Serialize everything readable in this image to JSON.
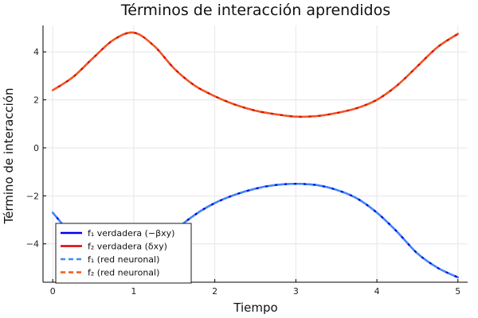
{
  "chart_data": {
    "type": "line",
    "title": "Términos de interacción aprendidos",
    "xlabel": "Tiempo",
    "ylabel": "Término de interacción",
    "xlim": [
      -0.12,
      5.12
    ],
    "ylim": [
      -5.6,
      5.1
    ],
    "xticks": [
      0,
      1,
      2,
      3,
      4,
      5
    ],
    "xtick_labels": [
      "0",
      "1",
      "2",
      "3",
      "4",
      "5"
    ],
    "yticks": [
      -4,
      -2,
      0,
      2,
      4
    ],
    "ytick_labels": [
      "−4",
      "−2",
      "0",
      "2",
      "4"
    ],
    "grid": true,
    "legend_position": "bottom-left",
    "x": [
      0,
      0.25,
      0.5,
      0.75,
      1.0,
      1.25,
      1.5,
      1.75,
      2.0,
      2.25,
      2.5,
      2.75,
      3.0,
      3.25,
      3.5,
      3.75,
      4.0,
      4.25,
      4.5,
      4.75,
      5.0
    ],
    "series": [
      {
        "name": "f₁ verdadera (−βxy)",
        "color": "#0000ee",
        "style": "solid",
        "values": [
          -2.7,
          -3.7,
          -4.6,
          -5.25,
          -5.45,
          -4.6,
          -3.5,
          -2.8,
          -2.3,
          -1.95,
          -1.7,
          -1.55,
          -1.5,
          -1.55,
          -1.75,
          -2.1,
          -2.7,
          -3.5,
          -4.4,
          -5.0,
          -5.4
        ]
      },
      {
        "name": "f₂ verdadera (δxy)",
        "color": "#dd0000",
        "style": "solid",
        "values": [
          2.4,
          2.95,
          3.75,
          4.5,
          4.8,
          4.25,
          3.3,
          2.6,
          2.15,
          1.8,
          1.55,
          1.4,
          1.3,
          1.32,
          1.45,
          1.65,
          2.0,
          2.6,
          3.4,
          4.2,
          4.75
        ]
      },
      {
        "name": "f₁ (red neuronal)",
        "color": "#3a8ef6",
        "style": "dashed",
        "values": [
          -2.7,
          -3.7,
          -4.6,
          -5.25,
          -5.45,
          -4.6,
          -3.5,
          -2.8,
          -2.3,
          -1.95,
          -1.7,
          -1.55,
          -1.5,
          -1.55,
          -1.75,
          -2.1,
          -2.7,
          -3.5,
          -4.4,
          -5.0,
          -5.4
        ]
      },
      {
        "name": "f₂ (red neuronal)",
        "color": "#f05a1a",
        "style": "dashed",
        "values": [
          2.4,
          2.95,
          3.75,
          4.5,
          4.8,
          4.25,
          3.3,
          2.6,
          2.15,
          1.8,
          1.55,
          1.4,
          1.3,
          1.32,
          1.45,
          1.65,
          2.0,
          2.6,
          3.4,
          4.2,
          4.75
        ]
      }
    ]
  }
}
